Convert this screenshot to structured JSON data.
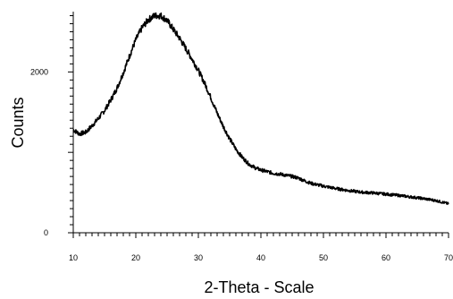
{
  "chart_data": {
    "type": "line",
    "title": "",
    "xlabel": "2-Theta - Scale",
    "ylabel": "Counts",
    "xlim": [
      10,
      70
    ],
    "ylim": [
      0,
      2750
    ],
    "x_ticks": [
      10,
      20,
      30,
      40,
      50,
      60,
      70
    ],
    "x_tick_labels": [
      "10",
      "20",
      "30",
      "40",
      "50",
      "60",
      "70"
    ],
    "y_ticks": [
      0,
      2000
    ],
    "y_tick_labels": [
      "0",
      "2000"
    ],
    "grid": false,
    "legend": "none",
    "line_color": "#000000",
    "series": [
      {
        "x": [
          10,
          11,
          12,
          13,
          14,
          15,
          16,
          17,
          18,
          19,
          20,
          21,
          22,
          23,
          24,
          25,
          26,
          27,
          28,
          29,
          30,
          31,
          32,
          33,
          34,
          35,
          36,
          37,
          38,
          39,
          40,
          41,
          42,
          43,
          44,
          45,
          46,
          47,
          48,
          50,
          52,
          54,
          56,
          58,
          60,
          62,
          64,
          66,
          68,
          70
        ],
        "y": [
          1280,
          1230,
          1250,
          1330,
          1420,
          1520,
          1650,
          1800,
          1990,
          2200,
          2400,
          2550,
          2650,
          2700,
          2700,
          2640,
          2530,
          2420,
          2290,
          2160,
          2020,
          1860,
          1680,
          1490,
          1320,
          1170,
          1040,
          940,
          860,
          810,
          780,
          760,
          740,
          730,
          715,
          700,
          680,
          645,
          615,
          580,
          550,
          525,
          505,
          495,
          480,
          465,
          445,
          425,
          400,
          360
        ]
      }
    ]
  }
}
